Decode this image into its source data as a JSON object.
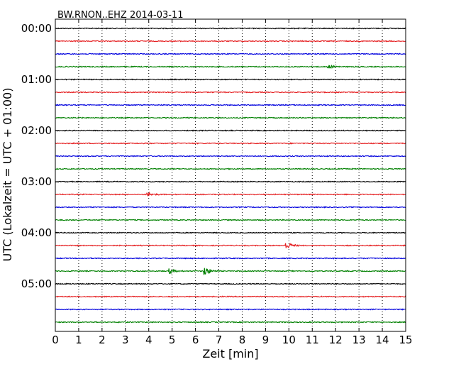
{
  "chart_data": {
    "type": "line",
    "title": "BW.RNON..EHZ 2014-03-11",
    "xlabel": "Zeit  [min]",
    "ylabel": "UTC (Lokalzeit = UTC + 01:00)",
    "xlim": [
      0,
      15
    ],
    "x_ticks": [
      "0",
      "1",
      "2",
      "3",
      "4",
      "5",
      "6",
      "7",
      "8",
      "9",
      "10",
      "11",
      "12",
      "13",
      "14",
      "15"
    ],
    "y_ticks": [
      "00:00",
      "01:00",
      "02:00",
      "03:00",
      "04:00",
      "05:00"
    ],
    "grid": "vertical dotted",
    "trace_interval_minutes": 15,
    "trace_colors": [
      "#000000",
      "#e41a1c",
      "#0000dd",
      "#008000"
    ],
    "traces": [
      {
        "start": "00:00",
        "color": "#000000",
        "events": []
      },
      {
        "start": "00:15",
        "color": "#e41a1c",
        "events": []
      },
      {
        "start": "00:30",
        "color": "#0000dd",
        "events": []
      },
      {
        "start": "00:45",
        "color": "#008000",
        "events": [
          {
            "x": 11.7,
            "amp": 0.25
          }
        ]
      },
      {
        "start": "01:00",
        "color": "#000000",
        "events": []
      },
      {
        "start": "01:15",
        "color": "#e41a1c",
        "events": []
      },
      {
        "start": "01:30",
        "color": "#0000dd",
        "events": []
      },
      {
        "start": "01:45",
        "color": "#008000",
        "events": []
      },
      {
        "start": "02:00",
        "color": "#000000",
        "events": []
      },
      {
        "start": "02:15",
        "color": "#e41a1c",
        "events": []
      },
      {
        "start": "02:30",
        "color": "#0000dd",
        "events": []
      },
      {
        "start": "02:45",
        "color": "#008000",
        "events": []
      },
      {
        "start": "03:00",
        "color": "#000000",
        "events": []
      },
      {
        "start": "03:15",
        "color": "#e41a1c",
        "events": [
          {
            "x": 3.95,
            "amp": 0.3
          }
        ]
      },
      {
        "start": "03:30",
        "color": "#0000dd",
        "events": []
      },
      {
        "start": "03:45",
        "color": "#008000",
        "events": []
      },
      {
        "start": "04:00",
        "color": "#000000",
        "events": []
      },
      {
        "start": "04:15",
        "color": "#e41a1c",
        "events": [
          {
            "x": 9.9,
            "amp": 0.55
          }
        ]
      },
      {
        "start": "04:30",
        "color": "#0000dd",
        "events": []
      },
      {
        "start": "04:45",
        "color": "#008000",
        "events": [
          {
            "x": 4.9,
            "amp": 0.35
          },
          {
            "x": 6.4,
            "amp": 0.7
          }
        ]
      },
      {
        "start": "05:00",
        "color": "#000000",
        "events": []
      },
      {
        "start": "05:15",
        "color": "#e41a1c",
        "events": []
      },
      {
        "start": "05:30",
        "color": "#0000dd",
        "events": []
      },
      {
        "start": "05:45",
        "color": "#008000",
        "events": []
      }
    ]
  }
}
